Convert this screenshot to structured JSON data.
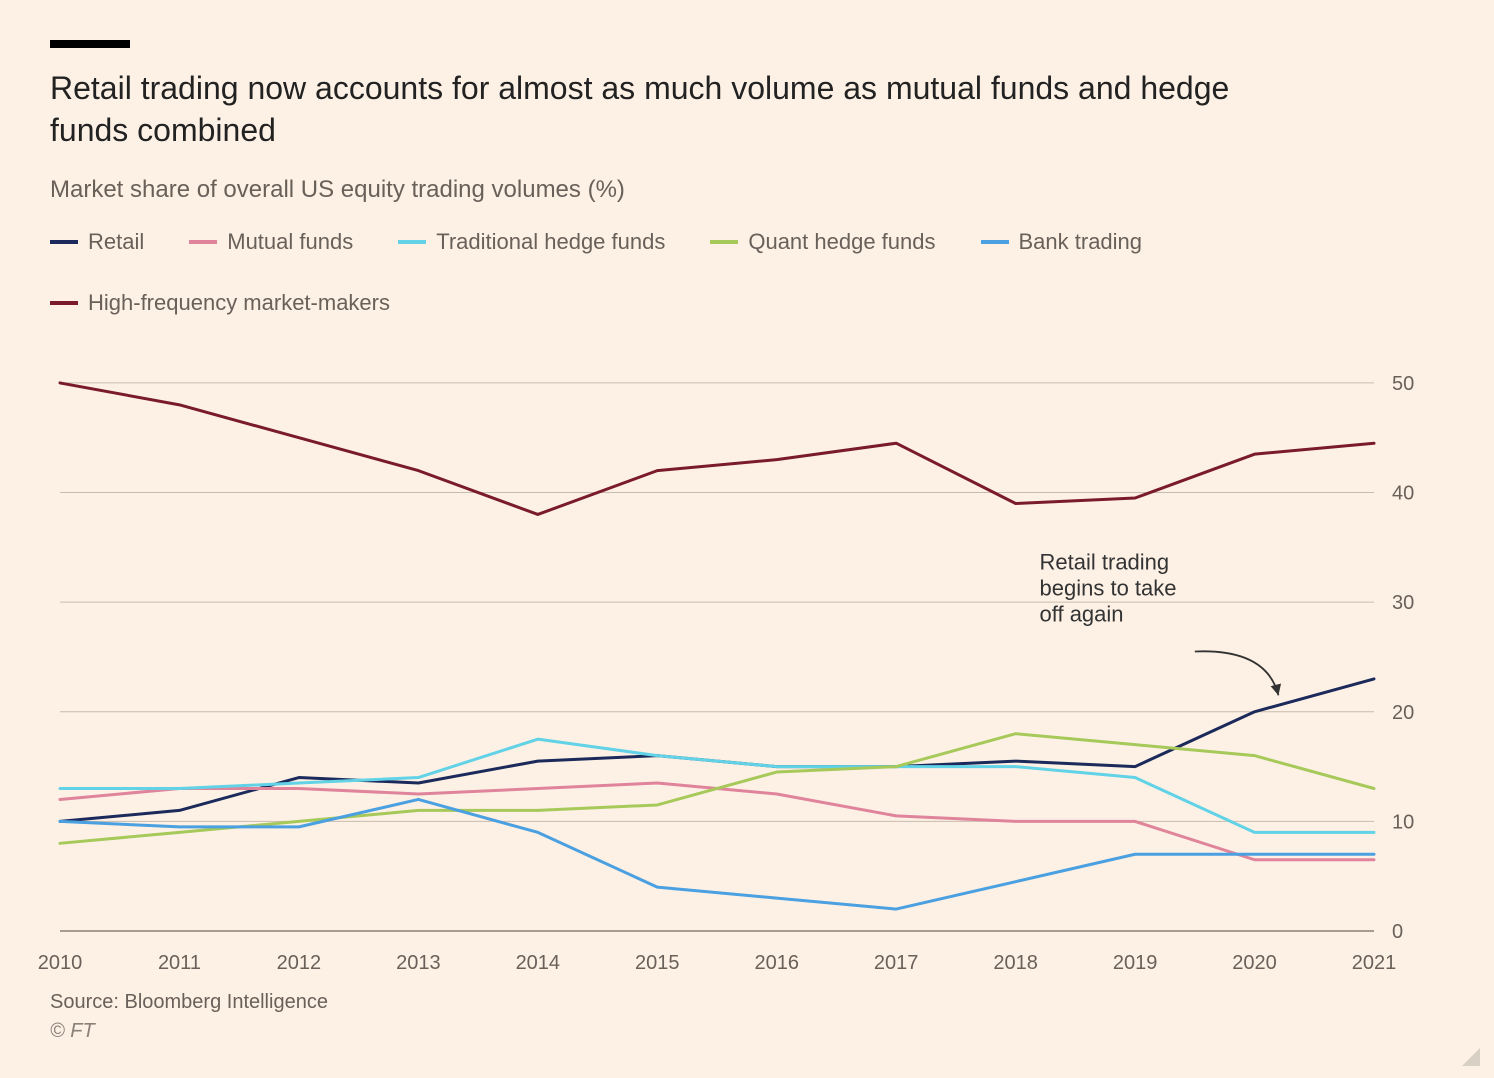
{
  "title": "Retail trading now accounts for almost as much volume as mutual funds and hedge funds combined",
  "subtitle": "Market share of overall US equity trading volumes (%)",
  "source": "Source: Bloomberg Intelligence",
  "copyright": "© FT",
  "background_color": "#fdf1e6",
  "accent_bar_color": "#000000",
  "text_color_primary": "#222222",
  "text_color_secondary": "#696159",
  "chart": {
    "type": "line",
    "x_label_years": [
      2010,
      2011,
      2012,
      2013,
      2014,
      2015,
      2016,
      2017,
      2018,
      2019,
      2020,
      2021
    ],
    "ylim": [
      0,
      52
    ],
    "yticks": [
      0,
      10,
      20,
      30,
      40,
      50
    ],
    "gridline_color": "#c9bcae",
    "baseline_color": "#8a8078",
    "line_width": 3,
    "series": [
      {
        "name": "Retail",
        "color": "#1b2a5b",
        "values": [
          10,
          11,
          14,
          13.5,
          15.5,
          16,
          15,
          15,
          15.5,
          15,
          20,
          23
        ]
      },
      {
        "name": "Mutual funds",
        "color": "#df849b",
        "values": [
          12,
          13,
          13,
          12.5,
          13,
          13.5,
          12.5,
          10.5,
          10,
          10,
          6.5,
          6.5
        ]
      },
      {
        "name": "Traditional hedge funds",
        "color": "#62d2e6",
        "values": [
          13,
          13,
          13.5,
          14,
          17.5,
          16,
          15,
          15,
          15,
          14,
          9,
          9
        ]
      },
      {
        "name": "Quant hedge funds",
        "color": "#a6c95a",
        "values": [
          8,
          9,
          10,
          11,
          11,
          11.5,
          14.5,
          15,
          18,
          17,
          16,
          13
        ]
      },
      {
        "name": "Bank trading",
        "color": "#4aa0e0",
        "values": [
          10,
          9.5,
          9.5,
          12,
          9,
          4,
          3,
          2,
          4.5,
          7,
          7,
          7
        ]
      },
      {
        "name": "High-frequency market-makers",
        "color": "#7a1a2d",
        "values": [
          50,
          48,
          45,
          42,
          38,
          42,
          43,
          44.5,
          39,
          39.5,
          43.5,
          44.5
        ]
      }
    ],
    "annotation": {
      "text_lines": [
        "Retail trading",
        "begins to take",
        "off again"
      ],
      "text_x_year": 2018.2,
      "text_y_value": 33,
      "arrow_from": {
        "year": 2019.5,
        "value": 25.5
      },
      "arrow_to": {
        "year": 2020.2,
        "value": 21.5
      },
      "arrow_color": "#333333"
    }
  },
  "legend_order": [
    "Retail",
    "Mutual funds",
    "Traditional hedge funds",
    "Quant hedge funds",
    "Bank trading",
    "High-frequency market-makers"
  ]
}
